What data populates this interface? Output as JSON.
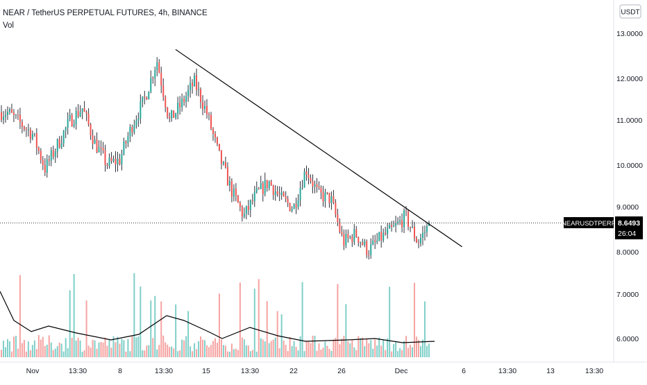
{
  "header": {
    "symbol_line": "NEAR / TetherUS PERPETUAL FUTURES, 4h, BINANCE",
    "indicator": "Vol"
  },
  "currency_button": "USDT",
  "price_axis": {
    "ticks": [
      "13.0000",
      "12.0000",
      "11.0000",
      "10.0000",
      "9.0000",
      "8.0000",
      "7.0000",
      "6.0000"
    ]
  },
  "time_axis": {
    "ticks": [
      "Nov",
      "13:30",
      "8",
      "13:30",
      "15",
      "13:30",
      "22",
      "26",
      "Dec",
      "6",
      "13:30",
      "13",
      "13:30"
    ]
  },
  "last_price": {
    "symbol_tag": "NEARUSDTPERP",
    "price": "8.6493",
    "countdown": "26:04"
  },
  "colors": {
    "up": "#26a69a",
    "down": "#ef5350",
    "trendline": "#000000",
    "label_bg": "#000000",
    "axis_text": "#131722"
  },
  "chart_data": {
    "type": "candlestick",
    "title": "NEAR / TetherUS PERPETUAL FUTURES, 4h, BINANCE",
    "timeframe": "4h",
    "exchange": "BINANCE",
    "ylim": [
      5.5,
      13.5
    ],
    "y_ticks": [
      13,
      12,
      11,
      10,
      9,
      8,
      7,
      6
    ],
    "price_path": [
      {
        "date": "Oct 30",
        "price": 11.2
      },
      {
        "date": "Nov 1",
        "price": 10.7
      },
      {
        "date": "Nov 2",
        "price": 9.9
      },
      {
        "date": "Nov 4",
        "price": 11.0
      },
      {
        "date": "Nov 5",
        "price": 11.3
      },
      {
        "date": "Nov 6",
        "price": 10.5
      },
      {
        "date": "Nov 7",
        "price": 10.0
      },
      {
        "date": "Nov 8",
        "price": 10.1
      },
      {
        "date": "Nov 9",
        "price": 10.9
      },
      {
        "date": "Nov 10",
        "price": 11.5
      },
      {
        "date": "Nov 11",
        "price": 12.4
      },
      {
        "date": "Nov 12",
        "price": 11.0
      },
      {
        "date": "Nov 13",
        "price": 11.4
      },
      {
        "date": "Nov 14",
        "price": 11.9
      },
      {
        "date": "Nov 15",
        "price": 11.2
      },
      {
        "date": "Nov 16",
        "price": 10.2
      },
      {
        "date": "Nov 17",
        "price": 9.4
      },
      {
        "date": "Nov 18",
        "price": 8.8
      },
      {
        "date": "Nov 19",
        "price": 9.3
      },
      {
        "date": "Nov 20",
        "price": 9.6
      },
      {
        "date": "Nov 21",
        "price": 9.2
      },
      {
        "date": "Nov 22",
        "price": 9.0
      },
      {
        "date": "Nov 23",
        "price": 9.9
      },
      {
        "date": "Nov 24",
        "price": 9.3
      },
      {
        "date": "Nov 25",
        "price": 9.2
      },
      {
        "date": "Nov 26",
        "price": 8.2
      },
      {
        "date": "Nov 27",
        "price": 8.4
      },
      {
        "date": "Nov 28",
        "price": 8.0
      },
      {
        "date": "Nov 29",
        "price": 8.3
      },
      {
        "date": "Nov 30",
        "price": 8.5
      },
      {
        "date": "Dec 1",
        "price": 8.8
      },
      {
        "date": "Dec 2",
        "price": 8.2
      },
      {
        "date": "Dec 3",
        "price": 8.65
      }
    ],
    "trendline": {
      "from": {
        "date": "Nov 11",
        "price": 12.65
      },
      "to": {
        "date": "Dec 5",
        "price": 8.1
      }
    },
    "last_price": 8.6493,
    "volume": {
      "has_moving_average": true,
      "relative_level": "low"
    }
  }
}
